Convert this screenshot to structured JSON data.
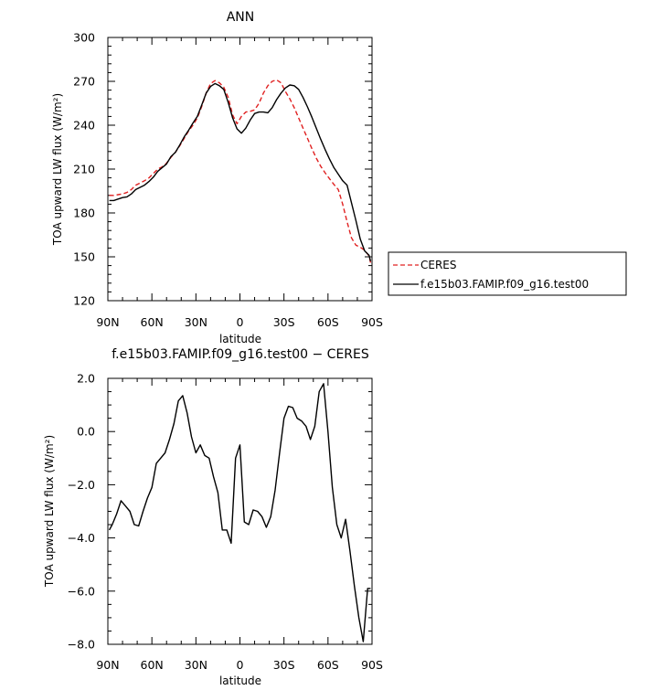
{
  "chart_data": [
    {
      "type": "line",
      "title": "ANN",
      "xlabel": "latitude",
      "ylabel": "TOA upward LW flux (W/m²)",
      "xlim": [
        90,
        -90
      ],
      "ylim": [
        120,
        300
      ],
      "xticks": [
        90,
        60,
        30,
        0,
        -30,
        -60,
        -90
      ],
      "xtick_labels": [
        "90N",
        "60N",
        "30N",
        "0",
        "30S",
        "60S",
        "90S"
      ],
      "yticks": [
        120,
        150,
        180,
        210,
        240,
        270,
        300
      ],
      "ytick_labels": [
        "120",
        "150",
        "180",
        "210",
        "240",
        "270",
        "300"
      ],
      "legend_position": "right, outside",
      "series": [
        {
          "name": "CERES",
          "color": "#e02020",
          "dash": "dashed",
          "x": [
            89,
            86,
            83,
            80,
            77,
            74,
            71,
            68,
            65,
            62,
            59,
            56,
            53,
            50,
            47,
            44,
            41,
            38,
            35,
            32,
            29,
            26,
            23,
            20,
            17,
            14,
            11,
            8,
            5,
            2,
            -1,
            -4,
            -7,
            -10,
            -13,
            -16,
            -19,
            -22,
            -25,
            -28,
            -31,
            -34,
            -37,
            -40,
            -43,
            -46,
            -49,
            -52,
            -55,
            -58,
            -61,
            -64,
            -67,
            -70,
            -73,
            -76,
            -79,
            -82,
            -85,
            -88,
            -89
          ],
          "values": [
            192,
            192,
            192.5,
            193,
            194,
            196,
            199,
            200.5,
            202,
            204,
            207,
            210,
            211.5,
            214,
            218,
            221.5,
            226,
            231,
            236,
            240,
            245,
            253,
            262,
            268.5,
            270.5,
            269,
            266,
            259,
            247,
            241,
            246,
            249,
            249.5,
            250.5,
            255,
            262,
            267,
            270,
            271,
            269,
            263,
            258,
            252,
            245,
            238,
            231,
            224,
            217.5,
            212,
            207.5,
            203.5,
            199.5,
            196,
            186,
            174,
            163,
            158,
            156.5,
            154.5,
            150.5,
            146
          ]
        },
        {
          "name": "f.e15b03.FAMIP.f09_g16.test00",
          "color": "#000000",
          "dash": "solid",
          "x": [
            89,
            86,
            83,
            80,
            77,
            74,
            71,
            68,
            65,
            62,
            59,
            56,
            53,
            50,
            47,
            44,
            41,
            38,
            35,
            32,
            29,
            26,
            23,
            20,
            17,
            14,
            11,
            8,
            5,
            2,
            -1,
            -4,
            -7,
            -10,
            -13,
            -16,
            -19,
            -22,
            -25,
            -28,
            -31,
            -34,
            -37,
            -40,
            -43,
            -46,
            -49,
            -52,
            -55,
            -58,
            -61,
            -64,
            -67,
            -70,
            -73,
            -76,
            -79,
            -82,
            -85,
            -88,
            -89
          ],
          "values": [
            188.5,
            188.5,
            189.5,
            190.5,
            191,
            193,
            196,
            197.5,
            199,
            201.5,
            204.5,
            208.5,
            211,
            213.5,
            218.5,
            221.5,
            226.5,
            232,
            236.5,
            241.5,
            246,
            254,
            262,
            266.5,
            268.5,
            267,
            264.5,
            255.5,
            245,
            237.5,
            234.5,
            238,
            243.5,
            248,
            249,
            249,
            248.5,
            252,
            257.5,
            262,
            265.5,
            267.5,
            267,
            264.5,
            259,
            252.5,
            245.5,
            238,
            230.5,
            223.5,
            217,
            211,
            206.5,
            202,
            199,
            187,
            175,
            162,
            154,
            151,
            147
          ]
        }
      ]
    },
    {
      "type": "line",
      "title": "f.e15b03.FAMIP.f09_g16.test00 − CERES",
      "xlabel": "latitude",
      "ylabel": "TOA upward LW flux (W/m²)",
      "xlim": [
        90,
        -90
      ],
      "ylim": [
        -8.0,
        2.0
      ],
      "xticks": [
        90,
        60,
        30,
        0,
        -30,
        -60,
        -90
      ],
      "xtick_labels": [
        "90N",
        "60N",
        "30N",
        "0",
        "30S",
        "60S",
        "90S"
      ],
      "yticks": [
        -8.0,
        -6.0,
        -4.0,
        -2.0,
        0.0,
        2.0
      ],
      "ytick_labels": [
        "−8.0",
        "−6.0",
        "−4.0",
        "−2.0",
        "0.0",
        "2.0"
      ],
      "series": [
        {
          "color": "#000000",
          "dash": "solid",
          "x": [
            89,
            87,
            84,
            81,
            78,
            75,
            72,
            69,
            66,
            63,
            60,
            57,
            54,
            51,
            48,
            45,
            42,
            39,
            36,
            33,
            30,
            27,
            24,
            21,
            18,
            15,
            12,
            9,
            6,
            3,
            0,
            -3,
            -6,
            -9,
            -12,
            -15,
            -18,
            -21,
            -24,
            -27,
            -30,
            -33,
            -36,
            -39,
            -42,
            -45,
            -48,
            -51,
            -54,
            -57,
            -60,
            -63,
            -66,
            -69,
            -72,
            -75,
            -78,
            -81,
            -84,
            -87,
            -89
          ],
          "values": [
            -3.7,
            -3.5,
            -3.1,
            -2.6,
            -2.8,
            -3.0,
            -3.5,
            -3.55,
            -3.0,
            -2.5,
            -2.1,
            -1.2,
            -1.0,
            -0.8,
            -0.3,
            0.3,
            1.15,
            1.35,
            0.7,
            -0.2,
            -0.8,
            -0.5,
            -0.9,
            -1.0,
            -1.7,
            -2.3,
            -3.7,
            -3.7,
            -4.2,
            -1.0,
            -0.5,
            -3.4,
            -3.5,
            -2.95,
            -3.0,
            -3.2,
            -3.6,
            -3.2,
            -2.2,
            -0.8,
            0.5,
            0.95,
            0.9,
            0.5,
            0.4,
            0.2,
            -0.3,
            0.2,
            1.5,
            1.8,
            0.0,
            -2.1,
            -3.5,
            -4.0,
            -3.3,
            -4.5,
            -5.8,
            -7.0,
            -7.9,
            -5.9,
            -5.9
          ]
        }
      ]
    }
  ]
}
